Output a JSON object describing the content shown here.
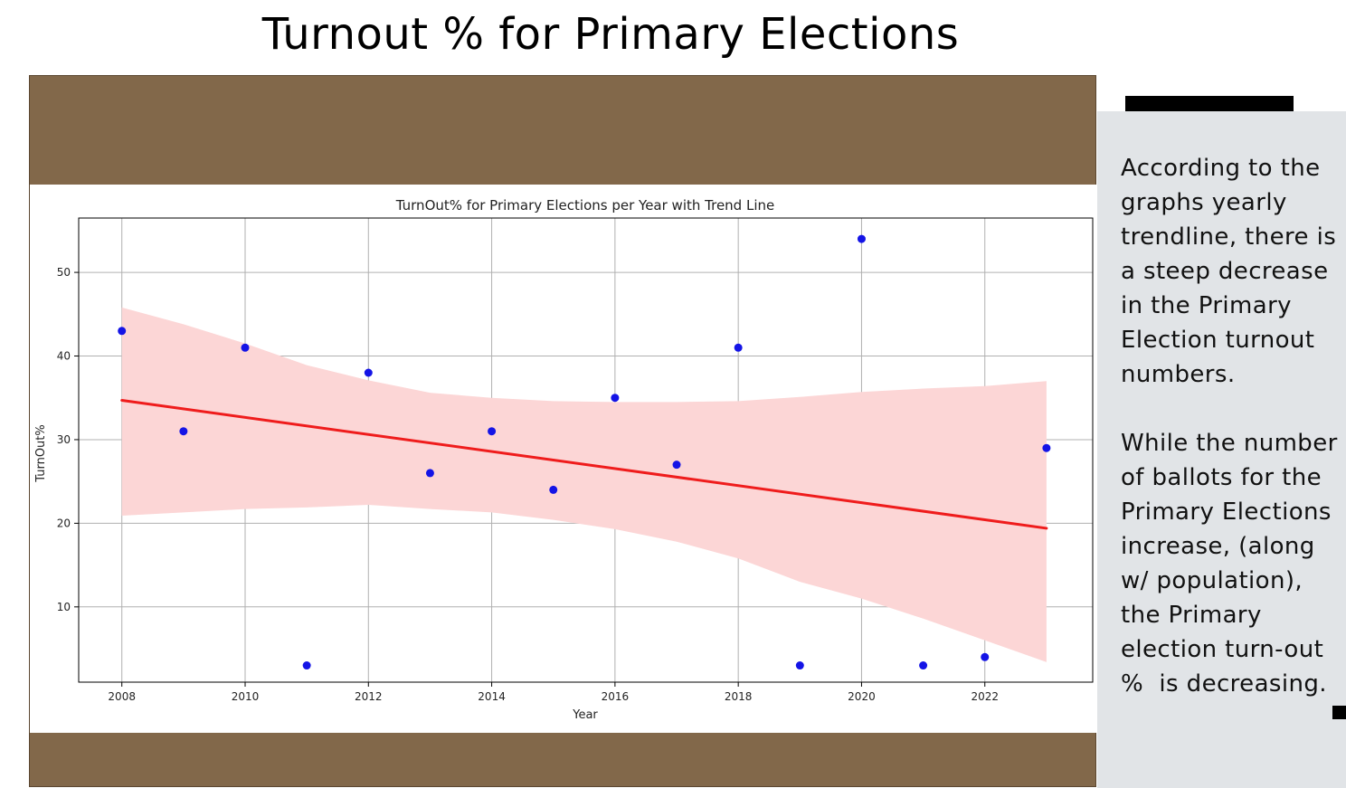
{
  "slide": {
    "title": "Turnout % for Primary Elections"
  },
  "side_panel": {
    "paragraph_1": "According to the graphs yearly trendline, there is a steep decrease in the Primary Election turnout numbers.",
    "paragraph_2": "While the number of ballots for the Primary Elections increase, (along w/ population), the Primary election turn-out %  is decreasing."
  },
  "colors": {
    "frame": "#82684a",
    "panel": "#e1e4e7",
    "points": "#1414e6",
    "trend": "#ef1c1c",
    "band": "#fcd6d6"
  },
  "chart_data": {
    "type": "scatter",
    "title": "TurnOut% for Primary Elections per Year with Trend Line",
    "xlabel": "Year",
    "ylabel": "TurnOut%",
    "xlim": [
      2007.3,
      2023.75
    ],
    "ylim": [
      1.0,
      56.5
    ],
    "xticks": [
      2008,
      2010,
      2012,
      2014,
      2016,
      2018,
      2020,
      2022
    ],
    "yticks": [
      10,
      20,
      30,
      40,
      50
    ],
    "grid": true,
    "series": [
      {
        "x": [
          2008,
          2009,
          2010,
          2011,
          2012,
          2013,
          2014,
          2015,
          2016,
          2017,
          2018,
          2019,
          2020,
          2021,
          2022,
          2023
        ],
        "y": [
          43,
          31,
          41,
          3,
          38,
          26,
          31,
          24,
          35,
          27,
          41,
          3,
          54,
          3,
          4,
          29
        ]
      }
    ],
    "trend_line": {
      "x": [
        2008,
        2023
      ],
      "y": [
        34.7,
        19.4
      ]
    },
    "confidence_band": {
      "x": [
        2008,
        2009,
        2010,
        2011,
        2012,
        2013,
        2014,
        2015,
        2016,
        2017,
        2018,
        2019,
        2020,
        2021,
        2022,
        2023
      ],
      "upper": [
        45.8,
        43.8,
        41.5,
        38.9,
        37.1,
        35.6,
        35.0,
        34.6,
        34.5,
        34.5,
        34.6,
        35.1,
        35.7,
        36.1,
        36.4,
        37.0
      ],
      "lower": [
        20.9,
        21.3,
        21.7,
        21.9,
        22.2,
        21.7,
        21.3,
        20.4,
        19.3,
        17.8,
        15.8,
        13.0,
        11.0,
        8.6,
        6.0,
        3.4
      ]
    }
  }
}
